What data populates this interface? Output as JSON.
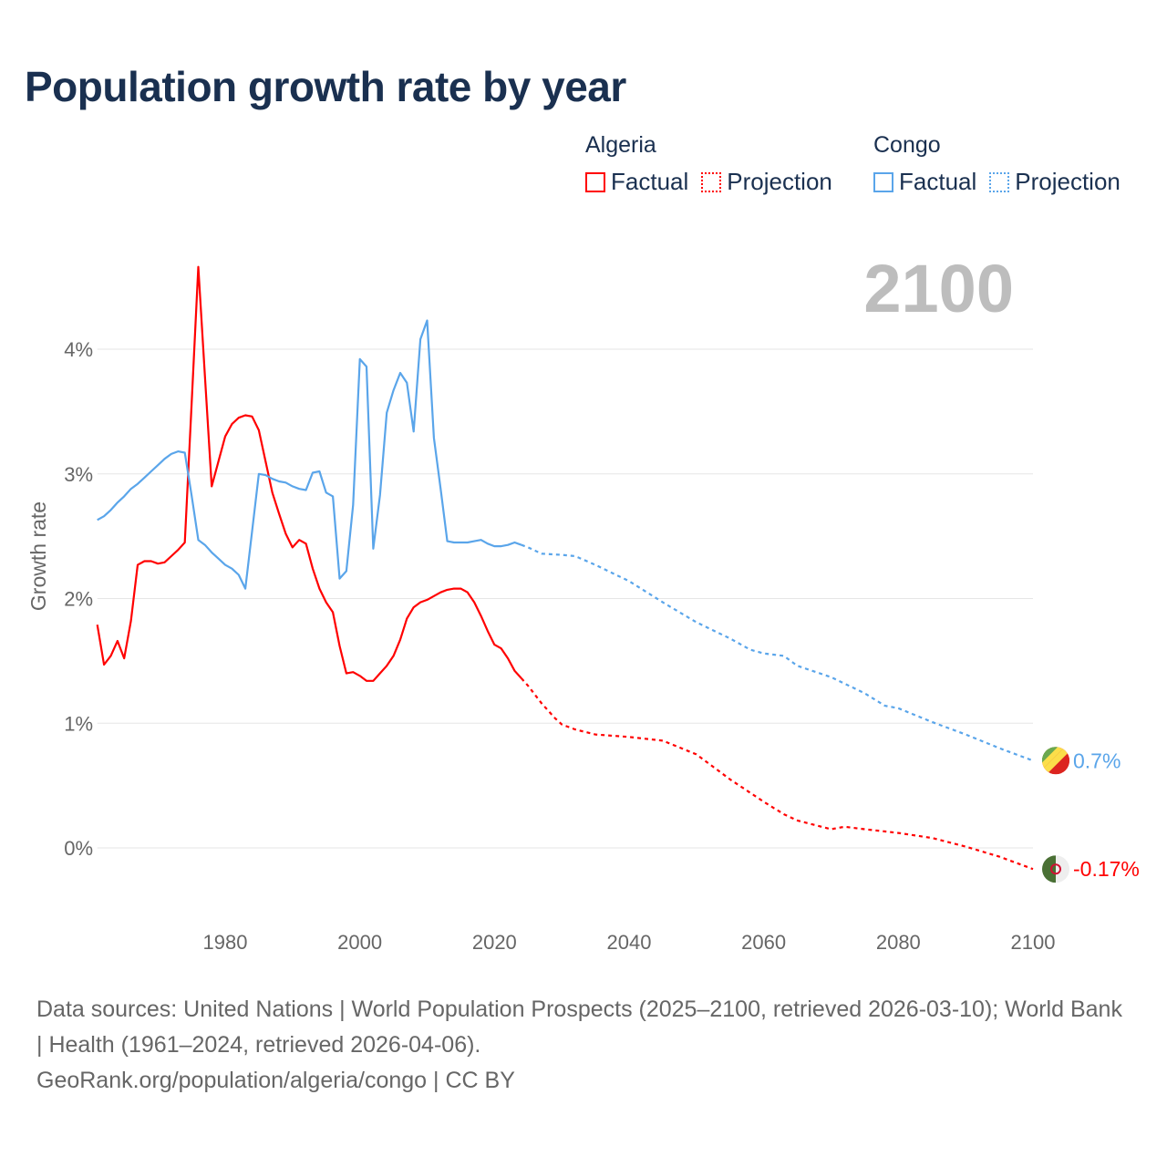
{
  "title": "Population growth rate by year",
  "legend": {
    "groups": [
      {
        "name": "Algeria",
        "factual": "Factual",
        "projection": "Projection",
        "color": "#ff0000"
      },
      {
        "name": "Congo",
        "factual": "Factual",
        "projection": "Projection",
        "color": "#5aa5ea"
      }
    ]
  },
  "year_label": "2100",
  "footer": {
    "sources": "Data sources: United Nations | World Population Prospects (2025–2100, retrieved 2026-03-10); World Bank | Health (1961–2024, retrieved 2026-04-06).",
    "credit": "GeoRank.org/population/algeria/congo | CC BY"
  },
  "chart_data": {
    "type": "line",
    "title": "Population growth rate by year",
    "xlabel": "",
    "ylabel": "Growth rate",
    "xlim": [
      1961,
      2100
    ],
    "ylim": [
      -0.5,
      4.7
    ],
    "xticks": [
      1980,
      2000,
      2020,
      2040,
      2060,
      2080,
      2100
    ],
    "xtick_labels": [
      "1980",
      "2000",
      "2020",
      "2040",
      "2060",
      "2080",
      "2100"
    ],
    "yticks": [
      0,
      1,
      2,
      3,
      4
    ],
    "ytick_labels": [
      "0%",
      "1%",
      "2%",
      "3%",
      "4%"
    ],
    "grid": true,
    "legend_position": "top-right",
    "series": [
      {
        "name": "Algeria Factual",
        "color": "#ff0000",
        "style": "solid",
        "x": [
          1961,
          1962,
          1963,
          1964,
          1965,
          1966,
          1967,
          1968,
          1969,
          1970,
          1971,
          1972,
          1973,
          1974,
          1975,
          1976,
          1977,
          1978,
          1979,
          1980,
          1981,
          1982,
          1983,
          1984,
          1985,
          1986,
          1987,
          1988,
          1989,
          1990,
          1991,
          1992,
          1993,
          1994,
          1995,
          1996,
          1997,
          1998,
          1999,
          2000,
          2001,
          2002,
          2003,
          2004,
          2005,
          2006,
          2007,
          2008,
          2009,
          2010,
          2011,
          2012,
          2013,
          2014,
          2015,
          2016,
          2017,
          2018,
          2019,
          2020,
          2021,
          2022,
          2023,
          2024
        ],
        "values": [
          1.79,
          1.47,
          1.54,
          1.66,
          1.52,
          1.82,
          2.27,
          2.3,
          2.3,
          2.28,
          2.29,
          2.34,
          2.39,
          2.45,
          3.55,
          4.66,
          3.78,
          2.9,
          3.1,
          3.3,
          3.4,
          3.45,
          3.47,
          3.46,
          3.35,
          3.1,
          2.85,
          2.68,
          2.52,
          2.41,
          2.47,
          2.44,
          2.24,
          2.08,
          1.97,
          1.89,
          1.62,
          1.4,
          1.41,
          1.38,
          1.34,
          1.34,
          1.4,
          1.46,
          1.54,
          1.67,
          1.84,
          1.93,
          1.97,
          1.99,
          2.02,
          2.05,
          2.07,
          2.08,
          2.08,
          2.05,
          1.97,
          1.86,
          1.74,
          1.63,
          1.6,
          1.52,
          1.42,
          1.36
        ]
      },
      {
        "name": "Algeria Projection",
        "color": "#ff0000",
        "style": "dotted",
        "x": [
          2024,
          2025,
          2026,
          2027,
          2028,
          2029,
          2030,
          2032,
          2035,
          2040,
          2045,
          2050,
          2055,
          2060,
          2063,
          2065,
          2070,
          2072,
          2075,
          2080,
          2085,
          2090,
          2095,
          2100
        ],
        "values": [
          1.36,
          1.3,
          1.23,
          1.16,
          1.1,
          1.04,
          0.99,
          0.95,
          0.91,
          0.89,
          0.86,
          0.75,
          0.55,
          0.37,
          0.27,
          0.22,
          0.15,
          0.17,
          0.15,
          0.12,
          0.08,
          0.01,
          -0.07,
          -0.17
        ]
      },
      {
        "name": "Congo Factual",
        "color": "#5aa5ea",
        "style": "solid",
        "x": [
          1961,
          1962,
          1963,
          1964,
          1965,
          1966,
          1967,
          1968,
          1969,
          1970,
          1971,
          1972,
          1973,
          1974,
          1975,
          1976,
          1977,
          1978,
          1979,
          1980,
          1981,
          1982,
          1983,
          1984,
          1985,
          1986,
          1987,
          1988,
          1989,
          1990,
          1991,
          1992,
          1993,
          1994,
          1995,
          1996,
          1997,
          1998,
          1999,
          2000,
          2001,
          2002,
          2003,
          2004,
          2005,
          2006,
          2007,
          2008,
          2009,
          2010,
          2011,
          2012,
          2013,
          2014,
          2015,
          2016,
          2017,
          2018,
          2019,
          2020,
          2021,
          2022,
          2023,
          2024
        ],
        "values": [
          2.63,
          2.66,
          2.71,
          2.77,
          2.82,
          2.88,
          2.92,
          2.97,
          3.02,
          3.07,
          3.12,
          3.16,
          3.18,
          3.17,
          2.83,
          2.47,
          2.43,
          2.37,
          2.32,
          2.27,
          2.24,
          2.19,
          2.08,
          2.54,
          3.0,
          2.99,
          2.96,
          2.94,
          2.93,
          2.9,
          2.88,
          2.87,
          3.01,
          3.02,
          2.85,
          2.82,
          2.16,
          2.22,
          2.75,
          3.92,
          3.86,
          2.4,
          2.83,
          3.49,
          3.67,
          3.81,
          3.73,
          3.34,
          4.08,
          4.23,
          3.29,
          2.88,
          2.46,
          2.45,
          2.45,
          2.45,
          2.46,
          2.47,
          2.44,
          2.42,
          2.42,
          2.43,
          2.45,
          2.43
        ]
      },
      {
        "name": "Congo Projection",
        "color": "#5aa5ea",
        "style": "dotted",
        "x": [
          2024,
          2025,
          2027,
          2030,
          2032,
          2035,
          2040,
          2045,
          2050,
          2055,
          2058,
          2060,
          2063,
          2065,
          2070,
          2075,
          2078,
          2080,
          2085,
          2090,
          2095,
          2100
        ],
        "values": [
          2.43,
          2.41,
          2.36,
          2.35,
          2.34,
          2.27,
          2.14,
          1.97,
          1.81,
          1.68,
          1.59,
          1.56,
          1.54,
          1.46,
          1.37,
          1.24,
          1.14,
          1.12,
          1.01,
          0.91,
          0.8,
          0.7
        ]
      }
    ],
    "end_labels": [
      {
        "series": "Congo",
        "text": "0.7%",
        "value": 0.7,
        "color": "#5aa5ea"
      },
      {
        "series": "Algeria",
        "text": "-0.17%",
        "value": -0.17,
        "color": "#ff0000"
      }
    ]
  }
}
